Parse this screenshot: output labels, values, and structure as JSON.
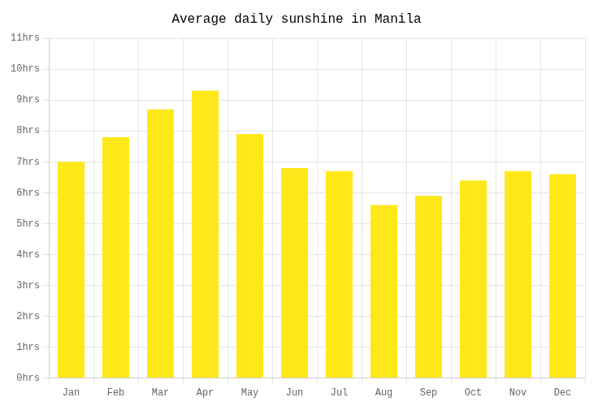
{
  "chart_data": {
    "type": "bar",
    "title": "Average daily sunshine in Manila",
    "categories": [
      "Jan",
      "Feb",
      "Mar",
      "Apr",
      "May",
      "Jun",
      "Jul",
      "Aug",
      "Sep",
      "Oct",
      "Nov",
      "Dec"
    ],
    "values": [
      7.0,
      7.8,
      8.7,
      9.3,
      7.9,
      6.8,
      6.7,
      5.6,
      5.9,
      6.4,
      6.7,
      6.6
    ],
    "color": "#FFE81A",
    "ylim": [
      0,
      11
    ],
    "yticks": [
      {
        "value": 0,
        "label": "0hrs"
      },
      {
        "value": 1,
        "label": "1hrs"
      },
      {
        "value": 2,
        "label": "2hrs"
      },
      {
        "value": 3,
        "label": "3hrs"
      },
      {
        "value": 4,
        "label": "4hrs"
      },
      {
        "value": 5,
        "label": "5hrs"
      },
      {
        "value": 6,
        "label": "6hrs"
      },
      {
        "value": 7,
        "label": "7hrs"
      },
      {
        "value": 8,
        "label": "8hrs"
      },
      {
        "value": 9,
        "label": "9hrs"
      },
      {
        "value": 10,
        "label": "10hrs"
      },
      {
        "value": 11,
        "label": "11hrs"
      }
    ],
    "grid": true
  }
}
